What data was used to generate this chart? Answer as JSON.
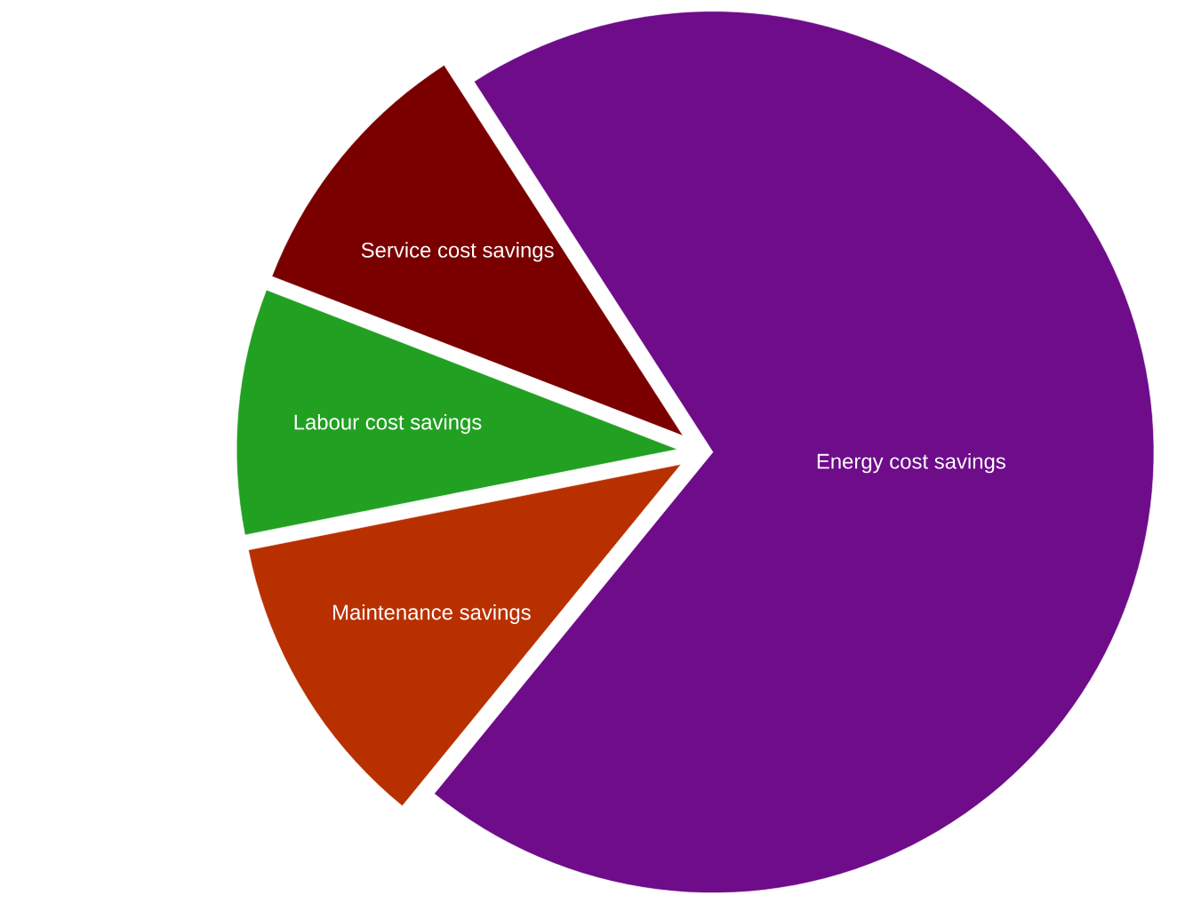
{
  "chart_data": {
    "type": "pie",
    "categories": [
      "Energy cost savings",
      "Maintenance savings",
      "Labour cost savings",
      "Service cost savings"
    ],
    "values": [
      70,
      11,
      9,
      10
    ],
    "colors": [
      "#6e0c8a",
      "#b83000",
      "#22a022",
      "#7a0000"
    ]
  }
}
